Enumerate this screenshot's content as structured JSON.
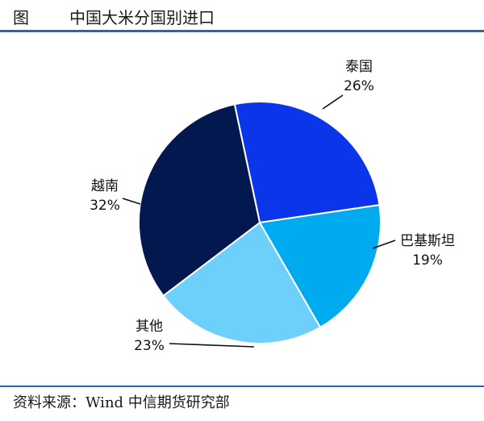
{
  "header": {
    "figure_label": "图",
    "title": "中国大米分国别进口"
  },
  "chart_data": {
    "type": "pie",
    "title": "中国大米分国别进口",
    "slices": [
      {
        "label": "泰国",
        "value": 26,
        "value_label": "26%",
        "color": "#0b35e8"
      },
      {
        "label": "巴基斯坦",
        "value": 19,
        "value_label": "19%",
        "color": "#00aaee"
      },
      {
        "label": "其他",
        "value": 23,
        "value_label": "23%",
        "color": "#6dd0fa"
      },
      {
        "label": "越南",
        "value": 32,
        "value_label": "32%",
        "color": "#03184f"
      }
    ],
    "legend": "none"
  },
  "footer": {
    "source": "资料来源：Wind  中信期货研究部"
  }
}
